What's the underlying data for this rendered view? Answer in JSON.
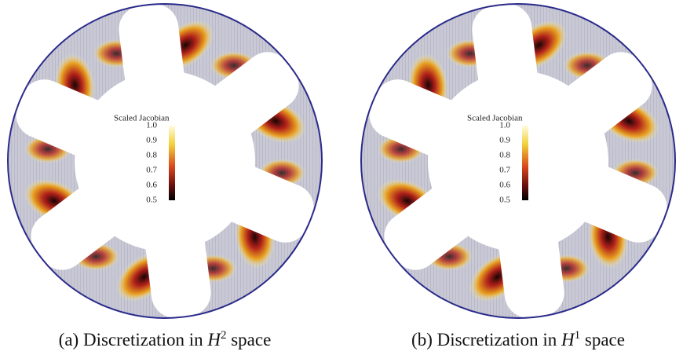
{
  "panels": [
    {
      "colorbar": {
        "title": "Scaled Jacobian",
        "ticks": [
          "1.0",
          "0.9",
          "0.8",
          "0.7",
          "0.6",
          "0.5"
        ]
      },
      "caption": {
        "label": "(a)",
        "text": "Discretization in",
        "symbol": "H",
        "exponent": "2",
        "suffix": "space"
      }
    },
    {
      "colorbar": {
        "title": "Scaled Jacobian",
        "ticks": [
          "1.0",
          "0.9",
          "0.8",
          "0.7",
          "0.6",
          "0.5"
        ]
      },
      "caption": {
        "label": "(b)",
        "text": "Discretization in",
        "symbol": "H",
        "exponent": "1",
        "suffix": "space"
      }
    }
  ]
}
